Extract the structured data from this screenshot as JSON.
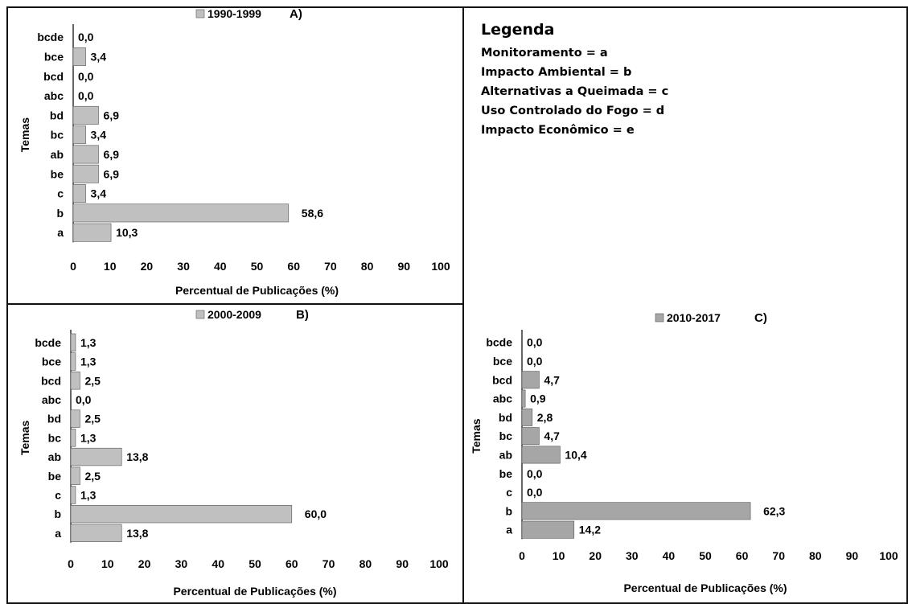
{
  "legend": {
    "title": "Legenda",
    "items": [
      "Monitoramento = a",
      "Impacto Ambiental = b",
      "Alternativas a Queimada = c",
      "Uso Controlado do Fogo = d",
      "Impacto Econômico = e"
    ]
  },
  "chart_data": [
    {
      "type": "bar",
      "orientation": "horizontal",
      "panel": "A)",
      "series_name": "1990-1999",
      "bar_color": "#c0c0c0",
      "ylabel": "Temas",
      "xlabel": "Percentual de Publicações (%)",
      "xlim": [
        0,
        100
      ],
      "xticks": [
        "0",
        "10",
        "20",
        "30",
        "40",
        "50",
        "60",
        "70",
        "80",
        "90",
        "100"
      ],
      "categories": [
        "bcde",
        "bce",
        "bcd",
        "abc",
        "bd",
        "bc",
        "ab",
        "be",
        "c",
        "b",
        "a"
      ],
      "values": [
        0.0,
        3.4,
        0.0,
        0.0,
        6.9,
        3.4,
        6.9,
        6.9,
        3.4,
        58.6,
        10.3
      ],
      "value_labels": [
        "0,0",
        "3,4",
        "0,0",
        "0,0",
        "6,9",
        "3,4",
        "6,9",
        "6,9",
        "3,4",
        "58,6",
        "10,3"
      ]
    },
    {
      "type": "bar",
      "orientation": "horizontal",
      "panel": "B)",
      "series_name": "2000-2009",
      "bar_color": "#c0c0c0",
      "ylabel": "Temas",
      "xlabel": "Percentual de Publicações (%)",
      "xlim": [
        0,
        100
      ],
      "xticks": [
        "0",
        "10",
        "20",
        "30",
        "40",
        "50",
        "60",
        "70",
        "80",
        "90",
        "100"
      ],
      "categories": [
        "bcde",
        "bce",
        "bcd",
        "abc",
        "bd",
        "bc",
        "ab",
        "be",
        "c",
        "b",
        "a"
      ],
      "values": [
        1.3,
        1.3,
        2.5,
        0.0,
        2.5,
        1.3,
        13.8,
        2.5,
        1.3,
        60.0,
        13.8
      ],
      "value_labels": [
        "1,3",
        "1,3",
        "2,5",
        "0,0",
        "2,5",
        "1,3",
        "13,8",
        "2,5",
        "1,3",
        "60,0",
        "13,8"
      ]
    },
    {
      "type": "bar",
      "orientation": "horizontal",
      "panel": "C)",
      "series_name": "2010-2017",
      "bar_color": "#a6a6a6",
      "ylabel": "Temas",
      "xlabel": "Percentual de Publicações (%)",
      "xlim": [
        0,
        100
      ],
      "xticks": [
        "0",
        "10",
        "20",
        "30",
        "40",
        "50",
        "60",
        "70",
        "80",
        "90",
        "100"
      ],
      "categories": [
        "bcde",
        "bce",
        "bcd",
        "abc",
        "bd",
        "bc",
        "ab",
        "be",
        "c",
        "b",
        "a"
      ],
      "values": [
        0.0,
        0.0,
        4.7,
        0.9,
        2.8,
        4.7,
        10.4,
        0.0,
        0.0,
        62.3,
        14.2
      ],
      "value_labels": [
        "0,0",
        "0,0",
        "4,7",
        "0,9",
        "2,8",
        "4,7",
        "10,4",
        "0,0",
        "0,0",
        "62,3",
        "14,2"
      ]
    }
  ]
}
